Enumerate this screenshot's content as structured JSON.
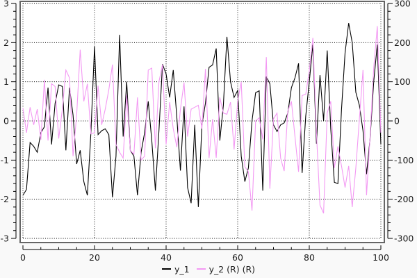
{
  "figure": {
    "background_color": "#f9f9f9",
    "plot_background_color": "#ffffff",
    "frame_color": "#666666",
    "grid_color": "#000000",
    "tick_label_color": "#1c1c1c"
  },
  "chart_data": {
    "type": "line",
    "title": "",
    "xlabel": "",
    "ylabel": "",
    "grid": "dotted-at-major-ticks",
    "legend_position": "bottom-center",
    "x": [
      0,
      1,
      2,
      3,
      4,
      5,
      6,
      7,
      8,
      9,
      10,
      11,
      12,
      13,
      14,
      15,
      16,
      17,
      18,
      19,
      20,
      21,
      22,
      23,
      24,
      25,
      26,
      27,
      28,
      29,
      30,
      31,
      32,
      33,
      34,
      35,
      36,
      37,
      38,
      39,
      40,
      41,
      42,
      43,
      44,
      45,
      46,
      47,
      48,
      49,
      50,
      51,
      52,
      53,
      54,
      55,
      56,
      57,
      58,
      59,
      60,
      61,
      62,
      63,
      64,
      65,
      66,
      67,
      68,
      69,
      70,
      71,
      72,
      73,
      74,
      75,
      76,
      77,
      78,
      79,
      80,
      81,
      82,
      83,
      84,
      85,
      86,
      87,
      88,
      89,
      90,
      91,
      92,
      93,
      94,
      95,
      96,
      97,
      98,
      99,
      100
    ],
    "series": [
      {
        "name": "y_1",
        "axis": "left",
        "color": "#000000",
        "values": [
          -1.9,
          -1.75,
          -0.55,
          -0.65,
          -0.8,
          -0.3,
          -0.15,
          0.85,
          -0.6,
          0.45,
          0.92,
          0.88,
          -0.75,
          0.85,
          0.15,
          -1.1,
          -0.75,
          -1.55,
          -1.9,
          -0.3,
          1.9,
          -0.35,
          -0.25,
          -0.2,
          -0.35,
          -1.95,
          -0.9,
          2.2,
          -0.4,
          1.0,
          -0.75,
          -0.9,
          -1.9,
          -0.8,
          -0.3,
          0.5,
          -0.5,
          -1.78,
          -0.25,
          1.45,
          1.2,
          0.6,
          1.3,
          0.1,
          -1.27,
          0.37,
          -1.7,
          -2.1,
          -0.1,
          -2.2,
          -0.1,
          0.45,
          1.37,
          1.43,
          1.85,
          -0.5,
          0.4,
          2.15,
          1.0,
          0.6,
          0.78,
          -0.9,
          -1.55,
          -1.2,
          0.0,
          0.72,
          0.77,
          -1.78,
          1.13,
          0.95,
          -0.1,
          -0.27,
          -0.1,
          -0.05,
          0.2,
          0.85,
          1.1,
          1.47,
          -1.33,
          0.12,
          1.0,
          1.95,
          -0.58,
          1.17,
          0.0,
          1.8,
          -0.2,
          -1.57,
          -1.6,
          0.3,
          1.74,
          2.5,
          2.0,
          0.73,
          0.4,
          -0.25,
          -1.36,
          -0.45,
          1.0,
          1.95,
          -0.6
        ]
      },
      {
        "name": "y_2",
        "axis": "right",
        "color": "#f399f3",
        "values": [
          33,
          -30,
          35,
          -10,
          30,
          -48,
          105,
          -50,
          95,
          88,
          -45,
          30,
          130,
          110,
          -90,
          15,
          182,
          50,
          95,
          -33,
          -30,
          90,
          -10,
          30,
          80,
          144,
          -60,
          -80,
          -95,
          67,
          -75,
          -85,
          60,
          -100,
          -90,
          130,
          135,
          -70,
          100,
          144,
          -60,
          48,
          -20,
          -67,
          30,
          98,
          -40,
          30,
          35,
          40,
          -20,
          133,
          -95,
          5,
          -94,
          60,
          20,
          17,
          48,
          -73,
          50,
          100,
          -117,
          -130,
          -229,
          0,
          8,
          -47,
          163,
          -173,
          5,
          20,
          -95,
          -128,
          25,
          50,
          -40,
          -130,
          65,
          68,
          128,
          212,
          -30,
          -215,
          -236,
          20,
          50,
          -120,
          -65,
          -115,
          -170,
          -115,
          -220,
          -120,
          5,
          130,
          -190,
          -40,
          135,
          242,
          -30
        ]
      }
    ],
    "axes": {
      "x": {
        "range": [
          0,
          100
        ],
        "major_ticks": [
          0,
          20,
          40,
          60,
          80,
          100
        ],
        "tick_labels": [
          "0",
          "20",
          "40",
          "60",
          "80",
          "100"
        ],
        "minor_step": 5
      },
      "y_left": {
        "range": [
          -3,
          3
        ],
        "major_ticks": [
          3,
          2,
          1,
          0,
          -1,
          -2,
          -3
        ],
        "tick_labels": [
          "3",
          "2",
          "1",
          "0",
          "-1",
          "-2",
          "-3"
        ],
        "minor_step": 0.2
      },
      "y_right": {
        "range": [
          -300,
          300
        ],
        "major_ticks": [
          300,
          200,
          100,
          0,
          -100,
          -200,
          -300
        ],
        "tick_labels": [
          "300",
          "200",
          "100",
          "0",
          "-100",
          "-200",
          "-300"
        ],
        "minor_step": 20
      }
    },
    "legend": {
      "entries": [
        {
          "label": "y_1",
          "color": "#000000"
        },
        {
          "label": "y_2 (R) (R)",
          "color": "#f399f3"
        }
      ]
    }
  }
}
